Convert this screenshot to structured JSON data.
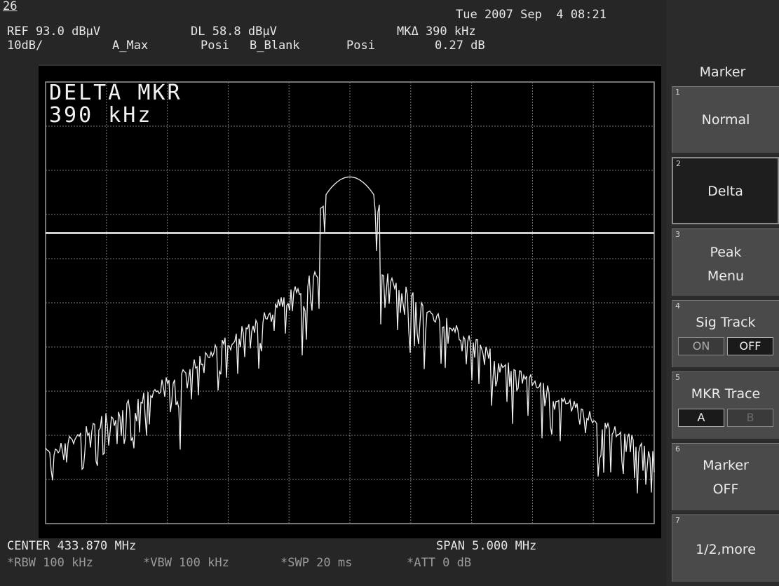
{
  "header": {
    "screen_number": "26",
    "datetime": "Tue 2007 Sep  4 08:21",
    "ref_level": "REF 93.0 dBµV",
    "display_line": "DL 58.8 dBµV",
    "marker_delta": "MKΔ 390 kHz",
    "scale": "10dB/",
    "trace_a": "A_Max",
    "trace_a_detector": "Posi",
    "trace_b": "B_Blank",
    "trace_b_detector": "Posi",
    "marker_delta_level": "0.27 dB"
  },
  "plot": {
    "big_label_line1": "DELTA MKR",
    "big_label_line2": "390 kHz",
    "display_line_level_dbuv": 58.8,
    "peak_level_dbuv": 71.5,
    "grid_divisions_x": 10,
    "grid_divisions_y": 10
  },
  "footer": {
    "center": "CENTER 433.870 MHz",
    "span": "SPAN 5.000 MHz",
    "rbw": "*RBW 100 kHz",
    "vbw": "*VBW 100 kHz",
    "swp": "*SWP 20 ms",
    "att": "*ATT 0 dB"
  },
  "softkeys": {
    "title": "Marker",
    "keys": [
      {
        "num": "1",
        "label": "Normal"
      },
      {
        "num": "2",
        "label": "Delta"
      },
      {
        "num": "3",
        "label1": "Peak",
        "label2": "Menu"
      },
      {
        "num": "4",
        "label": "Sig Track",
        "opt_on": "ON",
        "opt_off": "OFF"
      },
      {
        "num": "5",
        "label": "MKR Trace",
        "opt_a": "A",
        "opt_b": "B"
      },
      {
        "num": "6",
        "label1": "Marker",
        "label2": "OFF"
      },
      {
        "num": "7",
        "label": "1/2,more"
      }
    ]
  },
  "colors": {
    "background": "#262626",
    "plot_background": "#000000",
    "trace": "#f0f0f0",
    "grid": "#8a8a8a"
  }
}
